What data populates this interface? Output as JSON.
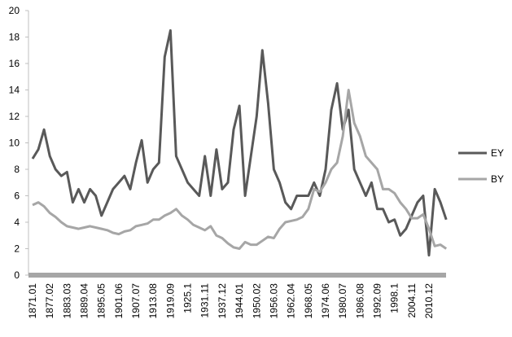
{
  "chart_data": {
    "type": "line",
    "categories": [
      "1871.01",
      null,
      null,
      "1877.02",
      null,
      null,
      "1883.03",
      null,
      null,
      "1889.04",
      null,
      null,
      "1895.05",
      null,
      null,
      "1901.06",
      null,
      null,
      "1907.07",
      null,
      null,
      "1913.08",
      null,
      null,
      "1919.09",
      null,
      null,
      "1925.1",
      null,
      null,
      "1931.11",
      null,
      null,
      "1937.12",
      null,
      null,
      "1944.01",
      null,
      null,
      "1950.02",
      null,
      null,
      "1956.03",
      null,
      null,
      "1962.04",
      null,
      null,
      "1968.05",
      null,
      null,
      "1974.06",
      null,
      null,
      "1980.07",
      null,
      null,
      "1986.08",
      null,
      null,
      "1992.09",
      null,
      null,
      "1998.1",
      null,
      null,
      "2004.11",
      null,
      null,
      "2010.12",
      null,
      null,
      null
    ],
    "series": [
      {
        "name": "EY",
        "color": "#595959",
        "values": [
          8.8,
          9.5,
          11,
          9,
          8,
          7.5,
          7.8,
          5.5,
          6.5,
          5.5,
          6.5,
          6,
          4.5,
          5.5,
          6.5,
          7,
          7.5,
          6.5,
          8.5,
          10.2,
          7,
          8,
          8.5,
          16.5,
          18.5,
          9,
          8,
          7,
          6.5,
          6,
          9,
          6,
          9.5,
          6.5,
          7,
          11,
          12.8,
          6,
          9,
          12,
          17,
          13,
          8,
          7,
          5.5,
          5,
          6,
          6,
          6,
          7,
          6,
          8,
          12.5,
          14.5,
          11,
          12.5,
          8,
          7,
          6,
          7,
          5,
          5,
          4,
          4.2,
          3,
          3.5,
          4.5,
          5.5,
          6,
          1.5,
          6.5,
          5.5,
          4.2
        ]
      },
      {
        "name": "BY",
        "color": "#a6a6a6",
        "values": [
          5.3,
          5.5,
          5.2,
          4.7,
          4.4,
          4,
          3.7,
          3.6,
          3.5,
          3.6,
          3.7,
          3.6,
          3.5,
          3.4,
          3.2,
          3.1,
          3.3,
          3.4,
          3.7,
          3.8,
          3.9,
          4.2,
          4.2,
          4.5,
          4.7,
          5,
          4.5,
          4.2,
          3.8,
          3.6,
          3.4,
          3.7,
          3,
          2.8,
          2.4,
          2.1,
          2,
          2.5,
          2.3,
          2.3,
          2.6,
          2.9,
          2.8,
          3.5,
          4,
          4.1,
          4.2,
          4.4,
          5,
          6.5,
          6.3,
          7,
          8,
          8.5,
          10.5,
          14,
          11.5,
          10.5,
          9,
          8.5,
          8,
          6.5,
          6.5,
          6.2,
          5.5,
          5,
          4.3,
          4.3,
          4.6,
          3.5,
          2.2,
          2.3,
          2
        ]
      }
    ],
    "ylim": [
      0,
      20
    ],
    "yticks": [
      0,
      2,
      4,
      6,
      8,
      10,
      12,
      14,
      16,
      18,
      20
    ],
    "grid": false,
    "legend": "right"
  }
}
